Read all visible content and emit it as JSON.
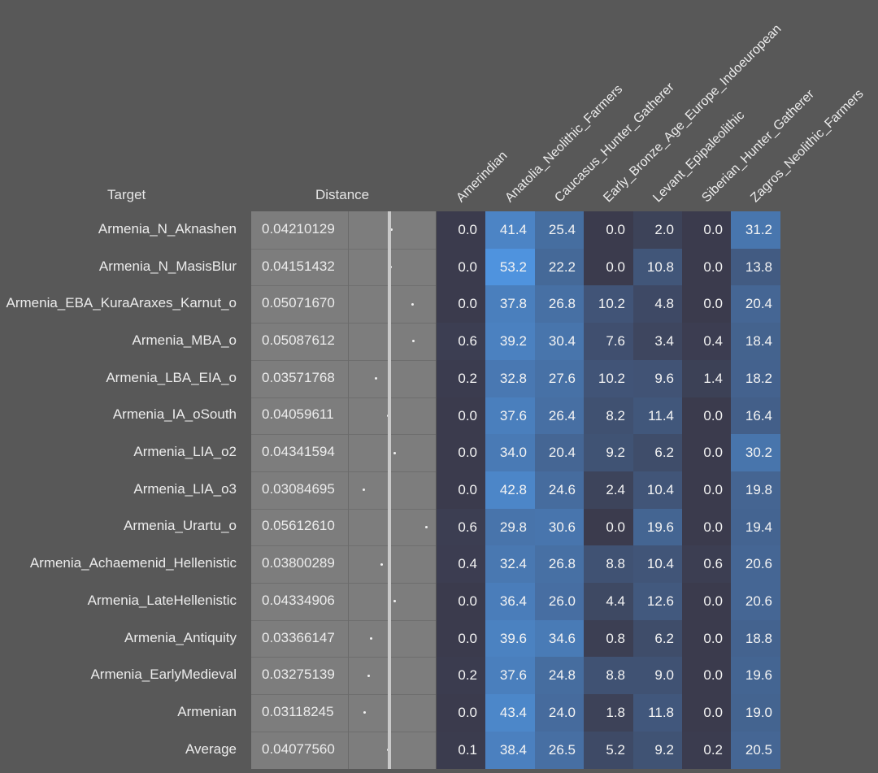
{
  "chart_data": {
    "type": "table",
    "headers": {
      "target": "Target",
      "distance": "Distance"
    },
    "columns": [
      "Amerindian",
      "Anatolia_Neolithic_Farmers",
      "Caucasus_Hunter_Gatherer",
      "Early_Bronze_Age_Europe_Indoeuropean",
      "Levant_Epipaleolithic",
      "Siberian_Hunter_Gatherer",
      "Zagros_Neolithic_Farmers"
    ],
    "rows": [
      {
        "target": "Armenia_N_Aknashen",
        "distance": "0.04210129",
        "distance_value": 0.04210129,
        "values": [
          "0.0",
          "41.4",
          "25.4",
          "0.0",
          "2.0",
          "0.0",
          "31.2"
        ]
      },
      {
        "target": "Armenia_N_MasisBlur",
        "distance": "0.04151432",
        "distance_value": 0.04151432,
        "values": [
          "0.0",
          "53.2",
          "22.2",
          "0.0",
          "10.8",
          "0.0",
          "13.8"
        ]
      },
      {
        "target": "Armenia_EBA_KuraAraxes_Karnut_o",
        "distance": "0.05071670",
        "distance_value": 0.0507167,
        "values": [
          "0.0",
          "37.8",
          "26.8",
          "10.2",
          "4.8",
          "0.0",
          "20.4"
        ]
      },
      {
        "target": "Armenia_MBA_o",
        "distance": "0.05087612",
        "distance_value": 0.05087612,
        "values": [
          "0.6",
          "39.2",
          "30.4",
          "7.6",
          "3.4",
          "0.4",
          "18.4"
        ]
      },
      {
        "target": "Armenia_LBA_EIA_o",
        "distance": "0.03571768",
        "distance_value": 0.03571768,
        "values": [
          "0.2",
          "32.8",
          "27.6",
          "10.2",
          "9.6",
          "1.4",
          "18.2"
        ]
      },
      {
        "target": "Armenia_IA_oSouth",
        "distance": "0.04059611",
        "distance_value": 0.04059611,
        "values": [
          "0.0",
          "37.6",
          "26.4",
          "8.2",
          "11.4",
          "0.0",
          "16.4"
        ]
      },
      {
        "target": "Armenia_LIA_o2",
        "distance": "0.04341594",
        "distance_value": 0.04341594,
        "values": [
          "0.0",
          "34.0",
          "20.4",
          "9.2",
          "6.2",
          "0.0",
          "30.2"
        ]
      },
      {
        "target": "Armenia_LIA_o3",
        "distance": "0.03084695",
        "distance_value": 0.03084695,
        "values": [
          "0.0",
          "42.8",
          "24.6",
          "2.4",
          "10.4",
          "0.0",
          "19.8"
        ]
      },
      {
        "target": "Armenia_Urartu_o",
        "distance": "0.05612610",
        "distance_value": 0.0561261,
        "values": [
          "0.6",
          "29.8",
          "30.6",
          "0.0",
          "19.6",
          "0.0",
          "19.4"
        ]
      },
      {
        "target": "Armenia_Achaemenid_Hellenistic",
        "distance": "0.03800289",
        "distance_value": 0.03800289,
        "values": [
          "0.4",
          "32.4",
          "26.8",
          "8.8",
          "10.4",
          "0.6",
          "20.6"
        ]
      },
      {
        "target": "Armenia_LateHellenistic",
        "distance": "0.04334906",
        "distance_value": 0.04334906,
        "values": [
          "0.0",
          "36.4",
          "26.0",
          "4.4",
          "12.6",
          "0.0",
          "20.6"
        ]
      },
      {
        "target": "Armenia_Antiquity",
        "distance": "0.03366147",
        "distance_value": 0.03366147,
        "values": [
          "0.0",
          "39.6",
          "34.6",
          "0.8",
          "6.2",
          "0.0",
          "18.8"
        ]
      },
      {
        "target": "Armenia_EarlyMedieval",
        "distance": "0.03275139",
        "distance_value": 0.03275139,
        "values": [
          "0.2",
          "37.6",
          "24.8",
          "8.8",
          "9.0",
          "0.0",
          "19.6"
        ]
      },
      {
        "target": "Armenian",
        "distance": "0.03118245",
        "distance_value": 0.03118245,
        "values": [
          "0.0",
          "43.4",
          "24.0",
          "1.8",
          "11.8",
          "0.0",
          "19.0"
        ]
      },
      {
        "target": "Average",
        "distance": "0.04077560",
        "distance_value": 0.0407756,
        "values": [
          "0.1",
          "38.4",
          "26.5",
          "5.2",
          "9.2",
          "0.2",
          "20.5"
        ]
      }
    ],
    "average_distance": 0.0407756,
    "distance_scale": [
      0.025,
      0.06
    ],
    "colors": {
      "background": "#585858",
      "distance_panel": "#7d7d7d",
      "heat_low": "#3b3b4d",
      "heat_high": "#4f93de",
      "dot": "#f2f2f2",
      "average_line": "#c9c9c9"
    }
  }
}
